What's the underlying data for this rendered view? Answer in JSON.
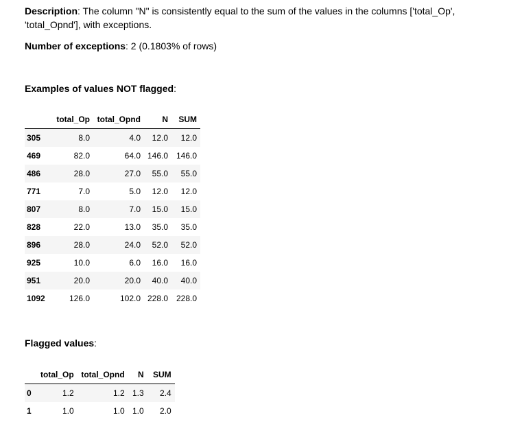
{
  "description": {
    "label": "Description",
    "text": ": The column \"N\" is consistently equal to the sum of the values in the columns ['total_Op', 'total_Opnd'], with exceptions."
  },
  "exceptions": {
    "label": "Number of exceptions",
    "text": ": 2 (0.1803% of rows)"
  },
  "not_flagged": {
    "heading": "Examples of values NOT flagged",
    "heading_suffix": ":",
    "columns": [
      "",
      "total_Op",
      "total_Opnd",
      "N",
      "SUM"
    ],
    "rows": [
      [
        "305",
        "8.0",
        "4.0",
        "12.0",
        "12.0"
      ],
      [
        "469",
        "82.0",
        "64.0",
        "146.0",
        "146.0"
      ],
      [
        "486",
        "28.0",
        "27.0",
        "55.0",
        "55.0"
      ],
      [
        "771",
        "7.0",
        "5.0",
        "12.0",
        "12.0"
      ],
      [
        "807",
        "8.0",
        "7.0",
        "15.0",
        "15.0"
      ],
      [
        "828",
        "22.0",
        "13.0",
        "35.0",
        "35.0"
      ],
      [
        "896",
        "28.0",
        "24.0",
        "52.0",
        "52.0"
      ],
      [
        "925",
        "10.0",
        "6.0",
        "16.0",
        "16.0"
      ],
      [
        "951",
        "20.0",
        "20.0",
        "40.0",
        "40.0"
      ],
      [
        "1092",
        "126.0",
        "102.0",
        "228.0",
        "228.0"
      ]
    ]
  },
  "flagged": {
    "heading": "Flagged values",
    "heading_suffix": ":",
    "columns": [
      "",
      "total_Op",
      "total_Opnd",
      "N",
      "SUM"
    ],
    "rows": [
      [
        "0",
        "1.2",
        "1.2",
        "1.3",
        "2.4"
      ],
      [
        "1",
        "1.0",
        "1.0",
        "1.0",
        "2.0"
      ]
    ]
  }
}
